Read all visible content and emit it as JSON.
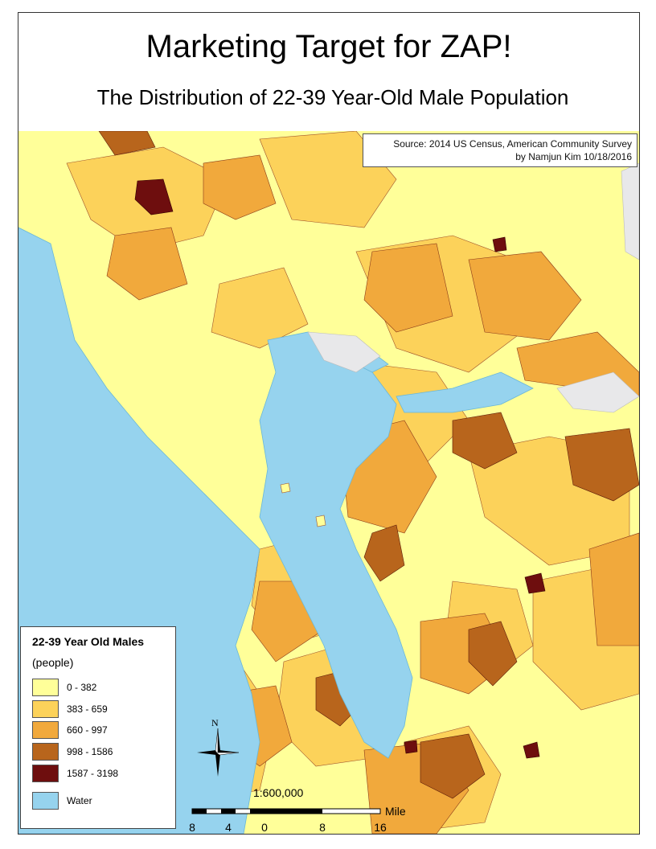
{
  "map": {
    "title": "Marketing Target for ZAP!",
    "subtitle": "The Distribution of 22-39 Year-Old Male Population",
    "source_line1": "Source: 2014 US Census, American Community Survey",
    "source_line2": "by Namjun Kim 10/18/2016",
    "legend": {
      "title": "22-39 Year Old Males",
      "units": "(people)",
      "classes": [
        {
          "label": "0 - 382",
          "color": "#ffff99"
        },
        {
          "label": "383 - 659",
          "color": "#fcd25a"
        },
        {
          "label": "660 - 997",
          "color": "#f1a93c"
        },
        {
          "label": "998 - 1586",
          "color": "#b8651c"
        },
        {
          "label": "1587 - 3198",
          "color": "#6e0e0e"
        }
      ],
      "water": {
        "label": "Water",
        "color": "#96d3ee"
      }
    },
    "scale": {
      "ratio": "1:600,000",
      "unit": "Miles",
      "ticks": [
        "8",
        "4",
        "0",
        "8",
        "16"
      ]
    },
    "north_label": "N"
  }
}
